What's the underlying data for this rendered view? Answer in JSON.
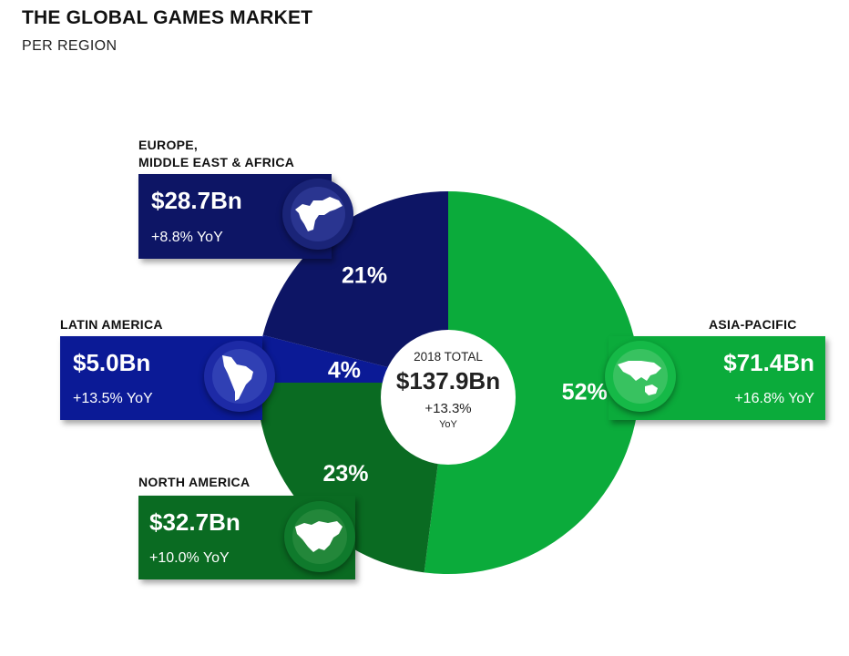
{
  "title": "THE GLOBAL GAMES MARKET",
  "subtitle": "PER REGION",
  "center": {
    "label": "2018 TOTAL",
    "value": "$137.9Bn",
    "change": "+13.3%",
    "unit": "YoY"
  },
  "chart_data": {
    "type": "pie",
    "title": "THE GLOBAL GAMES MARKET",
    "subtitle": "PER REGION",
    "total": {
      "label": "2018 TOTAL",
      "value_bn": 137.9,
      "yoy_pct": 13.3
    },
    "slices": [
      {
        "name": "ASIA-PACIFIC",
        "percent": 52,
        "value_bn": 71.4,
        "yoy_pct": 16.8,
        "color": "#0bab3b"
      },
      {
        "name": "NORTH AMERICA",
        "percent": 23,
        "value_bn": 32.7,
        "yoy_pct": 10.0,
        "color": "#0a6b22"
      },
      {
        "name": "LATIN AMERICA",
        "percent": 4,
        "value_bn": 5.0,
        "yoy_pct": 13.5,
        "color": "#0b1a96"
      },
      {
        "name": "EUROPE, MIDDLE EAST & AFRICA",
        "percent": 21,
        "value_bn": 28.7,
        "yoy_pct": 8.8,
        "color": "#0d1565"
      }
    ],
    "start_at": "top",
    "direction": "clockwise"
  },
  "regions": {
    "emea": {
      "name_line1": "EUROPE,",
      "name_line2": "MIDDLE EAST & AFRICA",
      "value": "$28.7Bn",
      "yoy": "+8.8% YoY",
      "pct": "21%",
      "color": "#0d1565",
      "icon": "europe-map-icon"
    },
    "latam": {
      "name": "LATIN AMERICA",
      "value": "$5.0Bn",
      "yoy": "+13.5% YoY",
      "pct": "4%",
      "color": "#0b1a96",
      "icon": "south-america-map-icon"
    },
    "na": {
      "name": "NORTH AMERICA",
      "value": "$32.7Bn",
      "yoy": "+10.0% YoY",
      "pct": "23%",
      "color": "#0a6b22",
      "icon": "north-america-map-icon"
    },
    "apac": {
      "name": "ASIA-PACIFIC",
      "value": "$71.4Bn",
      "yoy": "+16.8% YoY",
      "pct": "52%",
      "color": "#0bab3b",
      "icon": "asia-pacific-map-icon"
    }
  }
}
